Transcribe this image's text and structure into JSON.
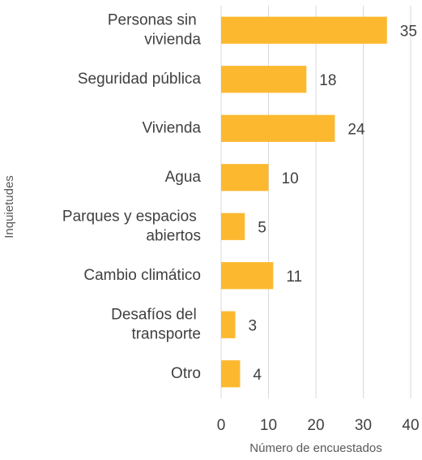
{
  "chart_data": {
    "type": "barh",
    "categories": [
      "Personas sin vivienda",
      "Seguridad pública",
      "Vivienda",
      "Agua",
      "Parques y espacios abiertos",
      "Cambio climático",
      "Desafíos del transporte",
      "Otro"
    ],
    "values": [
      35,
      18,
      24,
      10,
      5,
      11,
      3,
      4
    ],
    "color": "#fcb92f",
    "xlim": [
      0,
      40
    ],
    "xticks": [
      0,
      10,
      20,
      30,
      40
    ],
    "grid": true,
    "x_label": "Número de encuestados",
    "y_label": "Inquietudes"
  }
}
